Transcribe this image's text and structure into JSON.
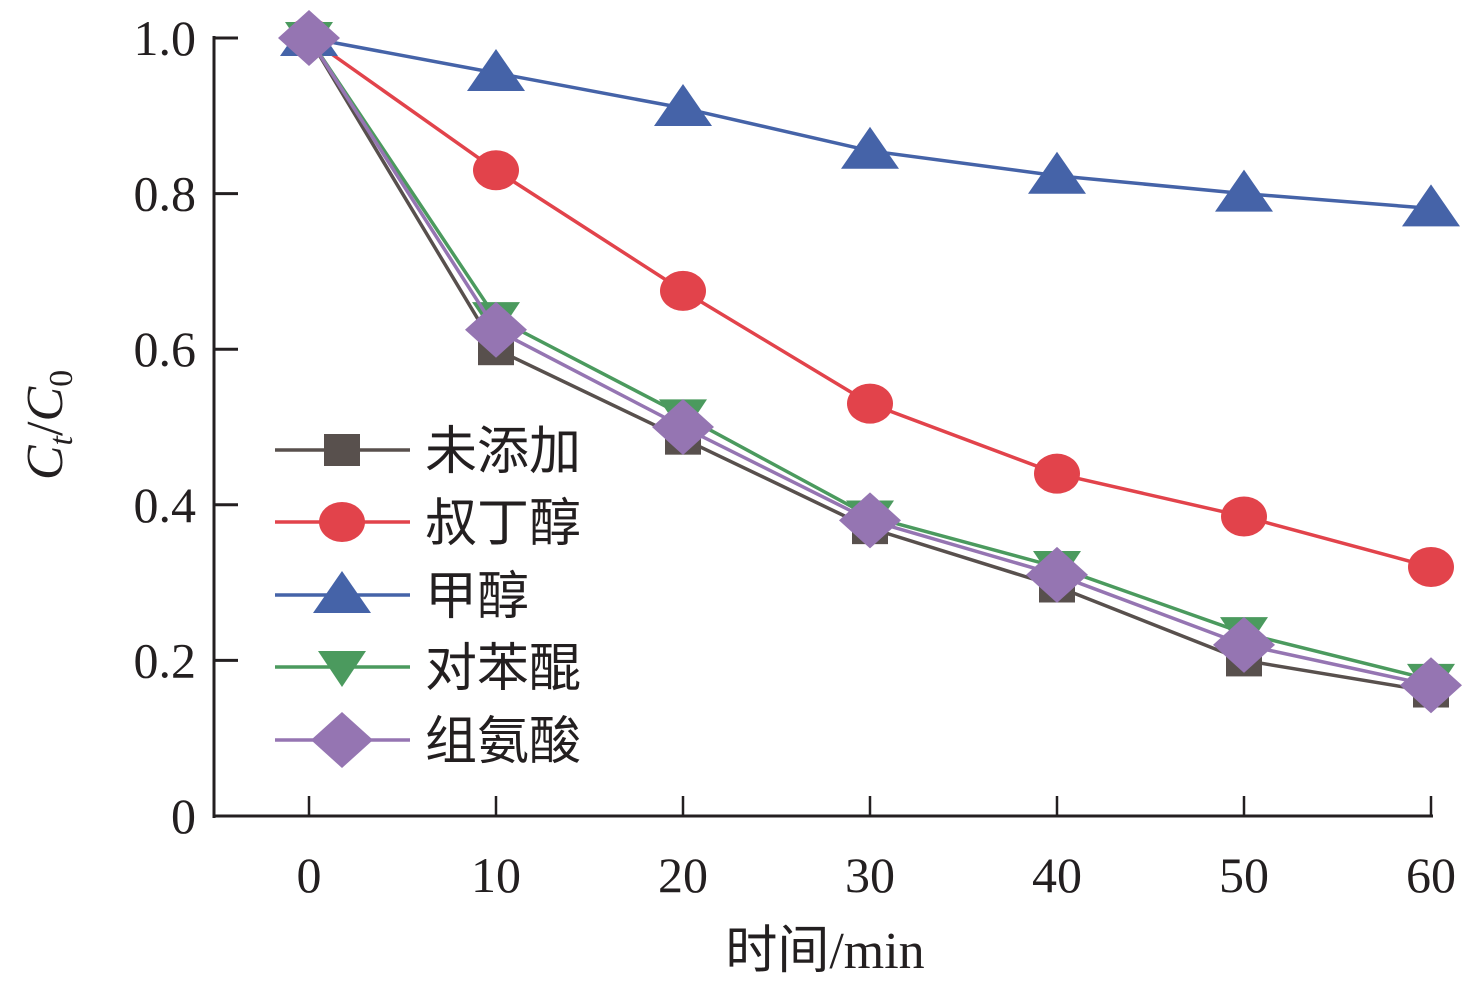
{
  "chart_data": {
    "type": "line",
    "title": "",
    "xlabel": "时间/min",
    "ylabel": "Ct/C0",
    "ylabel_parts": {
      "main": "C",
      "sub1": "t",
      "slash": "/",
      "main2": "C",
      "sub2": "0"
    },
    "x": [
      0,
      10,
      20,
      30,
      40,
      50,
      60
    ],
    "xlim": [
      -5,
      60
    ],
    "ylim": [
      0,
      1.0
    ],
    "xticks": [
      0,
      10,
      20,
      30,
      40,
      50,
      60
    ],
    "xtick_labels": [
      "0",
      "10",
      "20",
      "30",
      "40",
      "50",
      "60"
    ],
    "yticks": [
      0,
      0.2,
      0.4,
      0.6,
      0.8,
      1.0
    ],
    "ytick_labels": [
      "0",
      "0.2",
      "0.4",
      "0.6",
      "0.8",
      "1.0"
    ],
    "grid": false,
    "legend_position": "lower-left",
    "series": [
      {
        "name": "未添加",
        "marker": "square",
        "color": "#58504d",
        "values": [
          1.0,
          0.6,
          0.485,
          0.37,
          0.295,
          0.2,
          0.16
        ]
      },
      {
        "name": "叔丁醇",
        "marker": "circle",
        "color": "#e2434b",
        "values": [
          1.0,
          0.83,
          0.675,
          0.53,
          0.44,
          0.385,
          0.32
        ]
      },
      {
        "name": "甲醇",
        "marker": "triangle-up",
        "color": "#4563a8",
        "values": [
          1.0,
          0.955,
          0.91,
          0.855,
          0.823,
          0.8,
          0.781
        ]
      },
      {
        "name": "对苯醌",
        "marker": "triangle-down",
        "color": "#4b9a5e",
        "values": [
          1.0,
          0.64,
          0.515,
          0.385,
          0.32,
          0.235,
          0.175
        ]
      },
      {
        "name": "组氨酸",
        "marker": "diamond",
        "color": "#9575b2",
        "values": [
          1.0,
          0.625,
          0.5,
          0.38,
          0.31,
          0.22,
          0.168
        ]
      }
    ]
  }
}
